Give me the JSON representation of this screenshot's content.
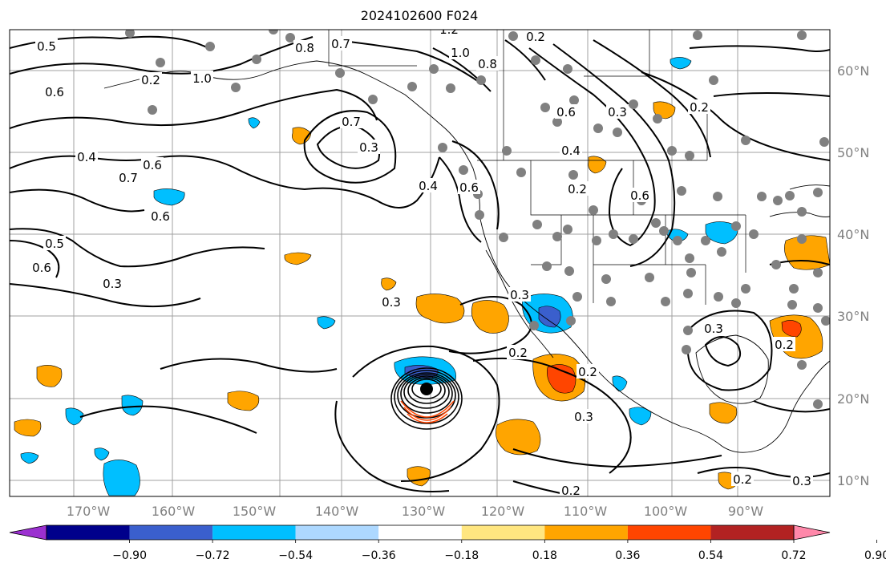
{
  "title": "2024102600 F024",
  "lon_labels": [
    "170°W",
    "160°W",
    "150°W",
    "140°W",
    "130°W",
    "120°W",
    "110°W",
    "100°W",
    "90°W"
  ],
  "lat_labels": [
    "60°N",
    "50°N",
    "40°N",
    "30°N",
    "20°N",
    "10°N"
  ],
  "colorbar": {
    "tick_labels": [
      "−0.90",
      "−0.72",
      "−0.54",
      "−0.36",
      "−0.18",
      "0.18",
      "0.36",
      "0.54",
      "0.72",
      "0.90"
    ],
    "colors": [
      "#9b30d0",
      "#00008b",
      "#3a5fcd",
      "#00bfff",
      "#add8ff",
      "#ffffff",
      "#ffe680",
      "#ffa500",
      "#ff4500",
      "#b22222",
      "#ff88aa"
    ]
  },
  "contour_labels": [
    "0.5",
    "0.6",
    "0.4",
    "0.7",
    "0.6",
    "0.6",
    "0.5",
    "0.8",
    "0.6",
    "0.3",
    "1.0",
    "0.2",
    "0.8",
    "0.7",
    "1.2",
    "1.0",
    "0.2",
    "0.4",
    "0.6",
    "0.2",
    "0.3",
    "0.6",
    "0.7",
    "0.3",
    "0.4",
    "0.6",
    "0.3",
    "0.3",
    "0.2",
    "0.3",
    "0.2",
    "0.2",
    "0.3",
    "0.2",
    "0.2",
    "0.2",
    "0.3"
  ],
  "colors": {
    "grid": "#a0a0a0",
    "station": "#808080",
    "contour": "#000000",
    "negative_fill": "#00bfff",
    "positive_fill": "#ffa500",
    "strong_positive_fill": "#ff4500"
  }
}
